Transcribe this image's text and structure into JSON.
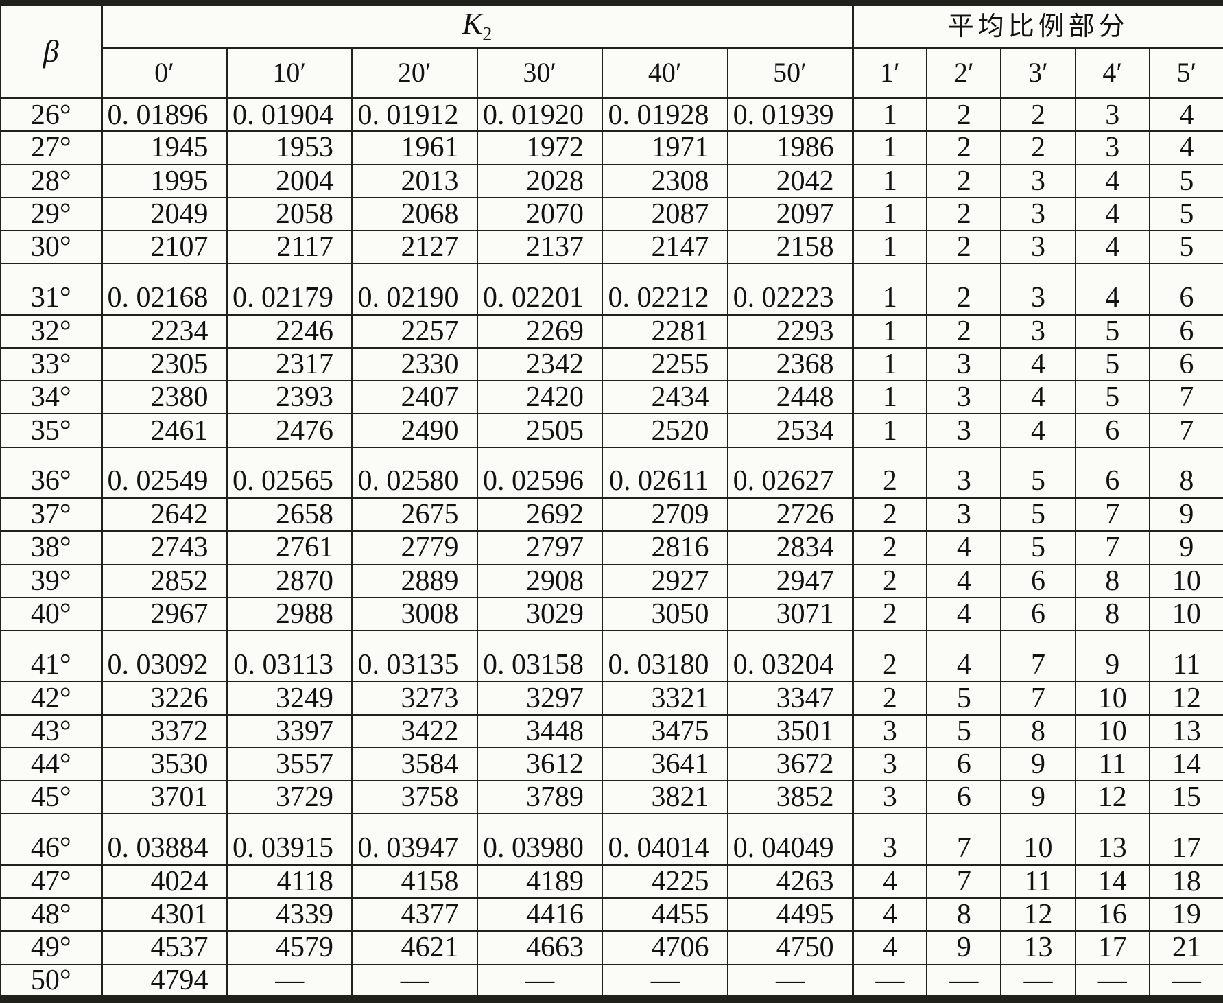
{
  "colors": {
    "background": "#fbfbf7",
    "line": "#21211c",
    "text": "#121210"
  },
  "table": {
    "beta_header": "β",
    "k2_header": {
      "main": "K",
      "sub": "2"
    },
    "avg_header": "平均比例部分",
    "minute_headers_k2": [
      "0′",
      "10′",
      "20′",
      "30′",
      "40′",
      "50′"
    ],
    "minute_headers_avg": [
      "1′",
      "2′",
      "3′",
      "4′",
      "5′"
    ],
    "group_size": 5,
    "rows": [
      {
        "beta": "26°",
        "k2": [
          "0. 01896",
          "0. 01904",
          "0. 01912",
          "0. 01920",
          "0. 01928",
          "0. 01939"
        ],
        "avg": [
          "1",
          "2",
          "2",
          "3",
          "4"
        ]
      },
      {
        "beta": "27°",
        "k2": [
          "1945",
          "1953",
          "1961",
          "1972",
          "1971",
          "1986"
        ],
        "avg": [
          "1",
          "2",
          "2",
          "3",
          "4"
        ]
      },
      {
        "beta": "28°",
        "k2": [
          "1995",
          "2004",
          "2013",
          "2028",
          "2308",
          "2042"
        ],
        "avg": [
          "1",
          "2",
          "3",
          "4",
          "5"
        ]
      },
      {
        "beta": "29°",
        "k2": [
          "2049",
          "2058",
          "2068",
          "2070",
          "2087",
          "2097"
        ],
        "avg": [
          "1",
          "2",
          "3",
          "4",
          "5"
        ]
      },
      {
        "beta": "30°",
        "k2": [
          "2107",
          "2117",
          "2127",
          "2137",
          "2147",
          "2158"
        ],
        "avg": [
          "1",
          "2",
          "3",
          "4",
          "5"
        ]
      },
      {
        "beta": "31°",
        "k2": [
          "0. 02168",
          "0. 02179",
          "0. 02190",
          "0. 02201",
          "0. 02212",
          "0. 02223"
        ],
        "avg": [
          "1",
          "2",
          "3",
          "4",
          "6"
        ]
      },
      {
        "beta": "32°",
        "k2": [
          "2234",
          "2246",
          "2257",
          "2269",
          "2281",
          "2293"
        ],
        "avg": [
          "1",
          "2",
          "3",
          "5",
          "6"
        ]
      },
      {
        "beta": "33°",
        "k2": [
          "2305",
          "2317",
          "2330",
          "2342",
          "2255",
          "2368"
        ],
        "avg": [
          "1",
          "3",
          "4",
          "5",
          "6"
        ]
      },
      {
        "beta": "34°",
        "k2": [
          "2380",
          "2393",
          "2407",
          "2420",
          "2434",
          "2448"
        ],
        "avg": [
          "1",
          "3",
          "4",
          "5",
          "7"
        ]
      },
      {
        "beta": "35°",
        "k2": [
          "2461",
          "2476",
          "2490",
          "2505",
          "2520",
          "2534"
        ],
        "avg": [
          "1",
          "3",
          "4",
          "6",
          "7"
        ]
      },
      {
        "beta": "36°",
        "k2": [
          "0. 02549",
          "0. 02565",
          "0. 02580",
          "0. 02596",
          "0. 02611",
          "0. 02627"
        ],
        "avg": [
          "2",
          "3",
          "5",
          "6",
          "8"
        ]
      },
      {
        "beta": "37°",
        "k2": [
          "2642",
          "2658",
          "2675",
          "2692",
          "2709",
          "2726"
        ],
        "avg": [
          "2",
          "3",
          "5",
          "7",
          "9"
        ]
      },
      {
        "beta": "38°",
        "k2": [
          "2743",
          "2761",
          "2779",
          "2797",
          "2816",
          "2834"
        ],
        "avg": [
          "2",
          "4",
          "5",
          "7",
          "9"
        ]
      },
      {
        "beta": "39°",
        "k2": [
          "2852",
          "2870",
          "2889",
          "2908",
          "2927",
          "2947"
        ],
        "avg": [
          "2",
          "4",
          "6",
          "8",
          "10"
        ]
      },
      {
        "beta": "40°",
        "k2": [
          "2967",
          "2988",
          "3008",
          "3029",
          "3050",
          "3071"
        ],
        "avg": [
          "2",
          "4",
          "6",
          "8",
          "10"
        ]
      },
      {
        "beta": "41°",
        "k2": [
          "0. 03092",
          "0. 03113",
          "0. 03135",
          "0. 03158",
          "0. 03180",
          "0. 03204"
        ],
        "avg": [
          "2",
          "4",
          "7",
          "9",
          "11"
        ]
      },
      {
        "beta": "42°",
        "k2": [
          "3226",
          "3249",
          "3273",
          "3297",
          "3321",
          "3347"
        ],
        "avg": [
          "2",
          "5",
          "7",
          "10",
          "12"
        ]
      },
      {
        "beta": "43°",
        "k2": [
          "3372",
          "3397",
          "3422",
          "3448",
          "3475",
          "3501"
        ],
        "avg": [
          "3",
          "5",
          "8",
          "10",
          "13"
        ]
      },
      {
        "beta": "44°",
        "k2": [
          "3530",
          "3557",
          "3584",
          "3612",
          "3641",
          "3672"
        ],
        "avg": [
          "3",
          "6",
          "9",
          "11",
          "14"
        ]
      },
      {
        "beta": "45°",
        "k2": [
          "3701",
          "3729",
          "3758",
          "3789",
          "3821",
          "3852"
        ],
        "avg": [
          "3",
          "6",
          "9",
          "12",
          "15"
        ]
      },
      {
        "beta": "46°",
        "k2": [
          "0. 03884",
          "0. 03915",
          "0. 03947",
          "0. 03980",
          "0. 04014",
          "0. 04049"
        ],
        "avg": [
          "3",
          "7",
          "10",
          "13",
          "17"
        ]
      },
      {
        "beta": "47°",
        "k2": [
          "4024",
          "4118",
          "4158",
          "4189",
          "4225",
          "4263"
        ],
        "avg": [
          "4",
          "7",
          "11",
          "14",
          "18"
        ]
      },
      {
        "beta": "48°",
        "k2": [
          "4301",
          "4339",
          "4377",
          "4416",
          "4455",
          "4495"
        ],
        "avg": [
          "4",
          "8",
          "12",
          "16",
          "19"
        ]
      },
      {
        "beta": "49°",
        "k2": [
          "4537",
          "4579",
          "4621",
          "4663",
          "4706",
          "4750"
        ],
        "avg": [
          "4",
          "9",
          "13",
          "17",
          "21"
        ]
      },
      {
        "beta": "50°",
        "k2": [
          "4794",
          "—",
          "—",
          "—",
          "—",
          "—"
        ],
        "avg": [
          "—",
          "—",
          "—",
          "—",
          "—"
        ]
      }
    ]
  }
}
